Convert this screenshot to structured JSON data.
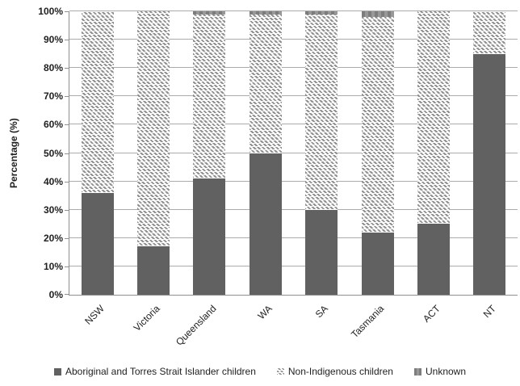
{
  "chart_data": {
    "type": "bar",
    "subtype": "stacked-column",
    "title": "",
    "xlabel": "",
    "ylabel": "Percentage (%)",
    "categories": [
      "NSW",
      "Victoria",
      "Queensland",
      "WA",
      "SA",
      "Tasmania",
      "ACT",
      "NT"
    ],
    "series": [
      {
        "name": "Aboriginal and Torres Strait Islander children",
        "style": "solid-dark",
        "values": [
          36,
          17,
          41,
          50,
          30,
          22,
          25,
          85
        ]
      },
      {
        "name": "Non-Indigenous children",
        "style": "hatched",
        "values": [
          64,
          83,
          58,
          49,
          69,
          76,
          75,
          15
        ]
      },
      {
        "name": "Unknown",
        "style": "solid-medium",
        "values": [
          0,
          0,
          1,
          1,
          1,
          2,
          0,
          0
        ]
      }
    ],
    "ylim": [
      0,
      100
    ],
    "ytick_step": 10,
    "ytick_labels": [
      "0%",
      "10%",
      "20%",
      "30%",
      "40%",
      "50%",
      "60%",
      "70%",
      "80%",
      "90%",
      "100%"
    ],
    "grid": true,
    "legend_position": "bottom"
  },
  "colors": {
    "series_dark": "#616161",
    "series_hatch_stroke": "#8f8f8f",
    "series_medium": "#8a8a8a",
    "gridline": "#ababab",
    "axis": "#909090",
    "text": "#1f1f1f"
  }
}
